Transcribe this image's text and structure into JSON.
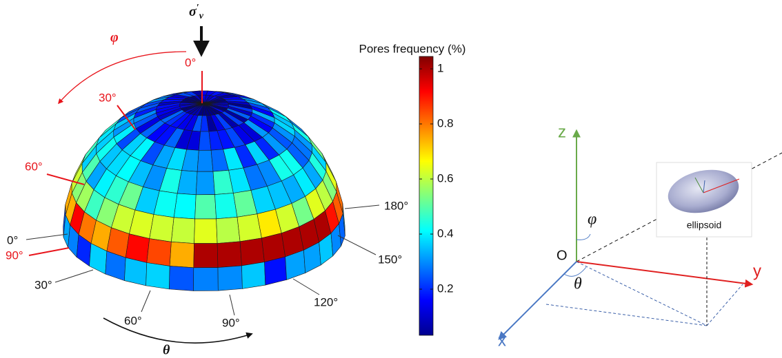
{
  "left": {
    "load_symbol": "σ",
    "load_prime": "′",
    "load_subscript": "v",
    "phi_symbol": "φ",
    "theta_symbol": "θ",
    "phi_angles": [
      "0°",
      "30°",
      "60°",
      "90°"
    ],
    "theta_angles": [
      "0°",
      "30°",
      "60°",
      "90°",
      "120°",
      "150°",
      "180°"
    ]
  },
  "colorbar": {
    "title": "Pores frequency (%)",
    "ticks": [
      "0.2",
      "0.4",
      "0.6",
      "0.8",
      "1"
    ]
  },
  "right": {
    "z_label": "z",
    "y_label": "y",
    "x_label": "x",
    "origin_label": "O",
    "phi_symbol": "φ",
    "theta_symbol": "θ",
    "inset_label": "ellipsoid"
  }
}
